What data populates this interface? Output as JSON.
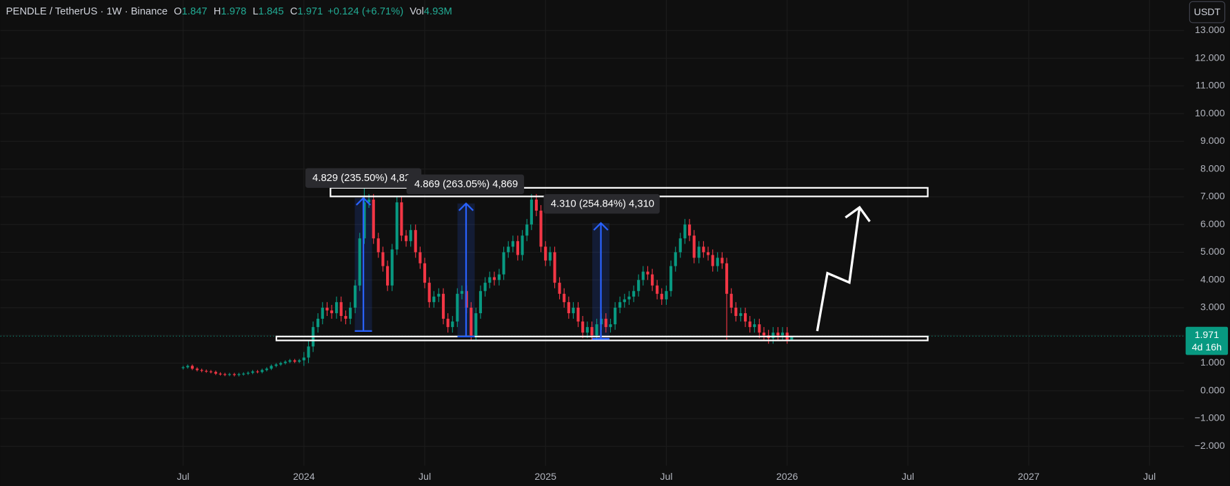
{
  "chart_data": {
    "type": "candlestick",
    "title": "PENDLE / TetherUS · 1W · Binance",
    "ohlc_labels": [
      "O",
      "H",
      "L",
      "C"
    ],
    "change": "+0.124 (+6.71%)",
    "volume_label": "Vol",
    "volume": "4.93M",
    "currency": "USDT",
    "countdown": "4d 16h",
    "annotations": [
      "4.829 (235.50%) 4,82",
      "4.869 (263.05%) 4,869",
      "4.310 (254.84%) 4,310"
    ],
    "up_color": "#089981",
    "down_color": "#f23645",
    "grid": true,
    "x": [
      2023.5,
      2023.519,
      2023.538,
      2023.558,
      2023.577,
      2023.596,
      2023.615,
      2023.635,
      2023.654,
      2023.673,
      2023.692,
      2023.712,
      2023.731,
      2023.75,
      2023.769,
      2023.788,
      2023.808,
      2023.827,
      2023.846,
      2023.865,
      2023.885,
      2023.904,
      2023.923,
      2023.942,
      2023.962,
      2023.981,
      2024,
      2024.019,
      2024.038,
      2024.058,
      2024.077,
      2024.096,
      2024.115,
      2024.135,
      2024.154,
      2024.173,
      2024.192,
      2024.212,
      2024.231,
      2024.25,
      2024.269,
      2024.288,
      2024.308,
      2024.327,
      2024.346,
      2024.365,
      2024.385,
      2024.404,
      2024.423,
      2024.442,
      2024.462,
      2024.481,
      2024.5,
      2024.519,
      2024.538,
      2024.558,
      2024.577,
      2024.596,
      2024.615,
      2024.635,
      2024.654,
      2024.673,
      2024.692,
      2024.712,
      2024.731,
      2024.75,
      2024.769,
      2024.788,
      2024.808,
      2024.827,
      2024.846,
      2024.865,
      2024.885,
      2024.904,
      2024.923,
      2024.942,
      2024.962,
      2024.981,
      2025,
      2025.019,
      2025.038,
      2025.058,
      2025.077,
      2025.096,
      2025.115,
      2025.135,
      2025.154,
      2025.173,
      2025.192,
      2025.212,
      2025.231,
      2025.25,
      2025.269,
      2025.288,
      2025.308,
      2025.327,
      2025.346,
      2025.365,
      2025.385,
      2025.404,
      2025.423,
      2025.442,
      2025.462,
      2025.481,
      2025.5,
      2025.519,
      2025.538,
      2025.558,
      2025.577,
      2025.596,
      2025.615,
      2025.635,
      2025.654,
      2025.673,
      2025.692,
      2025.712,
      2025.731,
      2025.75,
      2025.769,
      2025.788,
      2025.808,
      2025.827,
      2025.846,
      2025.865,
      2025.885,
      2025.904,
      2025.923,
      2025.942,
      2025.962,
      2025.981,
      2026,
      2026.019
    ],
    "open": [
      0.82,
      0.85,
      0.9,
      0.8,
      0.75,
      0.72,
      0.7,
      0.68,
      0.62,
      0.6,
      0.58,
      0.6,
      0.57,
      0.6,
      0.62,
      0.65,
      0.7,
      0.68,
      0.75,
      0.8,
      0.9,
      0.95,
      1.0,
      1.05,
      1.1,
      1.05,
      1.1,
      1.2,
      1.6,
      2.3,
      2.6,
      3.0,
      2.9,
      2.8,
      3.2,
      2.7,
      2.6,
      3.0,
      3.8,
      5.5,
      6.8,
      6.9,
      5.5,
      5.0,
      4.5,
      3.8,
      5.1,
      6.8,
      5.6,
      5.4,
      5.8,
      5.0,
      4.6,
      3.9,
      3.2,
      3.4,
      3.5,
      2.6,
      2.3,
      2.5,
      3.5,
      3.6,
      3.0,
      2.0,
      2.8,
      3.6,
      3.9,
      4.1,
      4.0,
      4.2,
      5.0,
      5.2,
      5.4,
      4.9,
      5.6,
      6.0,
      6.9,
      6.5,
      5.2,
      4.7,
      5.0,
      3.9,
      3.5,
      3.2,
      2.8,
      3.0,
      2.5,
      2.1,
      2.3,
      2.0,
      2.4,
      2.6,
      2.3,
      2.4,
      3.0,
      3.2,
      3.3,
      3.4,
      3.6,
      4.0,
      4.3,
      4.2,
      3.8,
      3.5,
      3.3,
      3.6,
      4.5,
      5.0,
      5.5,
      6.0,
      5.6,
      4.8,
      5.2,
      5.0,
      4.9,
      4.5,
      4.8,
      4.6,
      3.5,
      3.0,
      2.7,
      2.8,
      2.5,
      2.3,
      2.4,
      2.1,
      2.0,
      1.9,
      2.1,
      2.0,
      2.1,
      1.847
    ],
    "high": [
      0.9,
      0.95,
      0.95,
      0.85,
      0.8,
      0.77,
      0.75,
      0.73,
      0.67,
      0.65,
      0.65,
      0.65,
      0.65,
      0.67,
      0.7,
      0.75,
      0.75,
      0.8,
      0.85,
      0.95,
      1.0,
      1.05,
      1.1,
      1.15,
      1.15,
      1.15,
      1.4,
      1.8,
      2.5,
      2.8,
      3.2,
      3.2,
      3.1,
      3.4,
      3.4,
      2.9,
      3.2,
      4.0,
      5.7,
      7.4,
      7.1,
      7.1,
      5.7,
      5.2,
      4.7,
      5.3,
      7.0,
      7.0,
      5.8,
      6.0,
      6.0,
      5.2,
      4.8,
      4.1,
      3.6,
      3.7,
      3.7,
      2.8,
      2.7,
      3.7,
      3.8,
      3.8,
      3.2,
      3.0,
      3.8,
      4.1,
      4.3,
      4.3,
      4.4,
      5.2,
      5.4,
      5.6,
      5.6,
      5.8,
      6.2,
      7.1,
      7.1,
      6.7,
      5.4,
      5.2,
      5.2,
      4.1,
      3.7,
      3.4,
      3.2,
      3.2,
      2.7,
      2.5,
      2.5,
      2.6,
      2.8,
      2.8,
      2.6,
      3.2,
      3.4,
      3.5,
      3.6,
      3.8,
      4.2,
      4.5,
      4.5,
      4.4,
      4.0,
      3.7,
      3.8,
      4.7,
      5.2,
      5.7,
      6.2,
      6.2,
      5.8,
      5.4,
      5.4,
      5.2,
      5.1,
      5.0,
      5.0,
      4.8,
      3.7,
      3.2,
      3.0,
      3.0,
      2.7,
      2.6,
      2.6,
      2.3,
      2.2,
      2.3,
      2.3,
      2.3,
      2.3,
      1.978
    ],
    "low": [
      0.77,
      0.8,
      0.75,
      0.7,
      0.67,
      0.65,
      0.63,
      0.57,
      0.55,
      0.53,
      0.53,
      0.52,
      0.52,
      0.55,
      0.57,
      0.6,
      0.63,
      0.63,
      0.7,
      0.75,
      0.85,
      0.9,
      0.95,
      1.0,
      1.0,
      1.0,
      0.9,
      1.0,
      1.4,
      2.1,
      2.4,
      2.7,
      2.6,
      2.6,
      2.5,
      2.4,
      2.4,
      2.8,
      3.6,
      5.3,
      6.6,
      5.3,
      4.8,
      4.3,
      3.6,
      3.6,
      4.9,
      5.4,
      5.2,
      5.2,
      4.8,
      4.4,
      3.7,
      3.0,
      3.0,
      3.2,
      2.4,
      2.1,
      2.1,
      2.3,
      3.3,
      2.8,
      1.8,
      1.8,
      2.6,
      3.4,
      3.7,
      3.8,
      3.8,
      4.0,
      4.8,
      5.0,
      4.7,
      4.7,
      5.4,
      5.8,
      6.3,
      5.0,
      4.5,
      4.5,
      3.7,
      3.3,
      3.0,
      2.6,
      2.6,
      2.3,
      1.9,
      1.9,
      1.8,
      1.8,
      2.2,
      2.1,
      2.1,
      2.2,
      2.8,
      3.0,
      3.1,
      3.2,
      3.4,
      3.8,
      4.0,
      3.6,
      3.3,
      3.1,
      3.1,
      3.4,
      4.3,
      4.8,
      5.3,
      5.4,
      4.6,
      4.6,
      4.8,
      4.7,
      4.3,
      4.3,
      4.4,
      1.8,
      2.8,
      2.5,
      2.5,
      2.3,
      2.1,
      2.1,
      1.9,
      1.8,
      1.7,
      1.7,
      1.8,
      1.8,
      1.7,
      1.845
    ],
    "close": [
      0.85,
      0.9,
      0.8,
      0.75,
      0.72,
      0.7,
      0.68,
      0.62,
      0.6,
      0.58,
      0.6,
      0.57,
      0.6,
      0.62,
      0.65,
      0.7,
      0.68,
      0.75,
      0.8,
      0.9,
      0.95,
      1.0,
      1.05,
      1.1,
      1.05,
      1.1,
      1.2,
      1.6,
      2.3,
      2.6,
      3.0,
      2.9,
      2.8,
      3.2,
      2.7,
      2.6,
      3.0,
      3.8,
      5.5,
      6.8,
      6.9,
      5.5,
      5.0,
      4.5,
      3.8,
      5.1,
      6.8,
      5.6,
      5.4,
      5.8,
      5.0,
      4.6,
      3.9,
      3.2,
      3.4,
      3.5,
      2.6,
      2.3,
      2.5,
      3.5,
      3.6,
      3.0,
      2.0,
      2.8,
      3.6,
      3.9,
      4.1,
      4.0,
      4.2,
      5.0,
      5.2,
      5.4,
      4.9,
      5.6,
      6.0,
      6.9,
      6.5,
      5.2,
      4.7,
      5.0,
      3.9,
      3.5,
      3.2,
      2.8,
      3.0,
      2.5,
      2.1,
      2.3,
      2.0,
      2.4,
      2.6,
      2.3,
      2.4,
      3.0,
      3.2,
      3.3,
      3.4,
      3.6,
      4.0,
      4.3,
      4.2,
      3.8,
      3.5,
      3.3,
      3.6,
      4.5,
      5.0,
      5.5,
      6.0,
      5.6,
      4.8,
      5.2,
      5.0,
      4.9,
      4.5,
      4.8,
      4.6,
      3.5,
      3.0,
      2.7,
      2.8,
      2.5,
      2.3,
      2.4,
      2.1,
      2.0,
      1.9,
      2.1,
      2.0,
      2.1,
      1.847,
      1.971
    ],
    "xlim": [
      2022.744,
      2027.643
    ],
    "xticks": [
      {
        "value": 2023.5,
        "label": "Jul"
      },
      2024,
      {
        "value": 2024.5,
        "label": "Jul"
      },
      2025,
      {
        "value": 2025.5,
        "label": "Jul"
      },
      2026,
      {
        "value": 2026.5,
        "label": "Jul"
      },
      2027,
      {
        "value": 2027.5,
        "label": "Jul"
      }
    ],
    "ylim": [
      -2.7,
      14.1
    ],
    "yticks": [
      {
        "value": -2,
        "label": "−2.000"
      },
      {
        "value": -1,
        "label": "−1.000"
      },
      {
        "value": 0,
        "label": "0.000"
      },
      {
        "value": 1,
        "label": "1.000"
      },
      {
        "value": 2,
        "label": "2.000"
      },
      {
        "value": 3,
        "label": "3.000"
      },
      {
        "value": 4,
        "label": "4.000"
      },
      {
        "value": 5,
        "label": "5.000"
      },
      {
        "value": 6,
        "label": "6.000"
      },
      {
        "value": 7,
        "label": "7.000"
      },
      {
        "value": 8,
        "label": "8.000"
      },
      {
        "value": 9,
        "label": "9.000"
      },
      {
        "value": 10,
        "label": "10.000"
      },
      {
        "value": 11,
        "label": "11.000"
      },
      {
        "value": 12,
        "label": "12.000"
      },
      {
        "value": 13,
        "label": "13.000"
      }
    ]
  }
}
